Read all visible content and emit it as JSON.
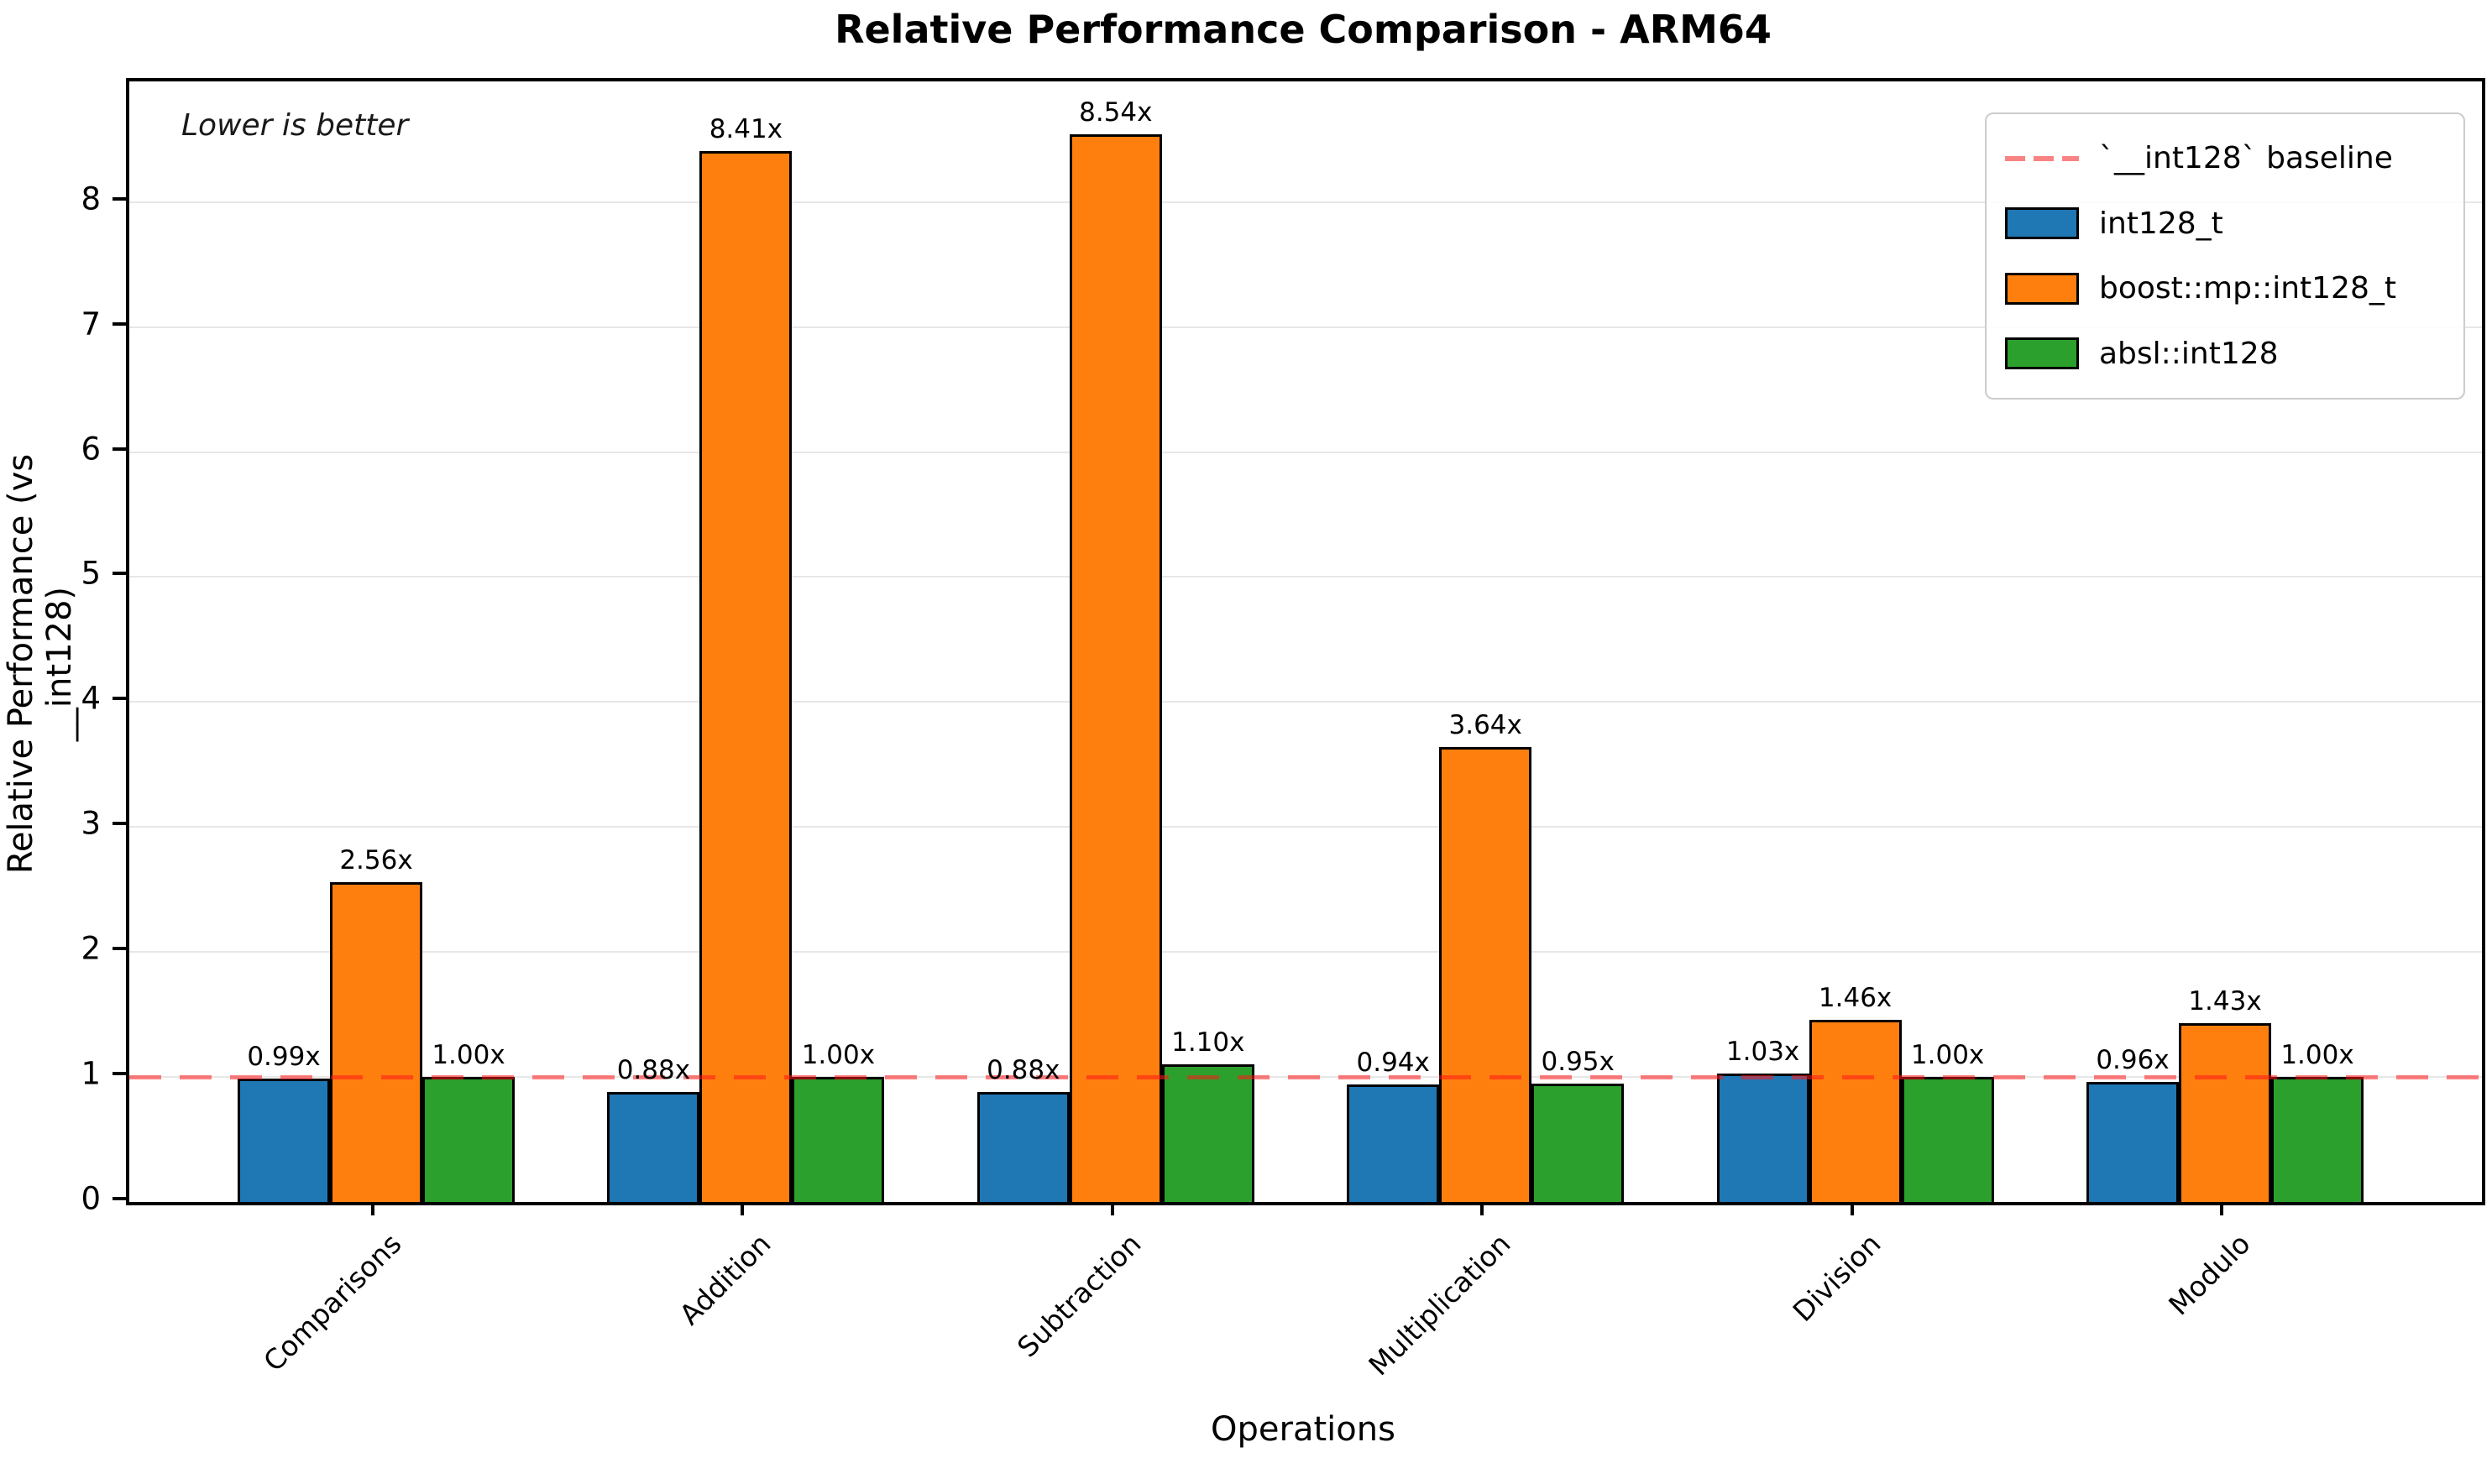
{
  "title": "Relative Performance Comparison - ARM64",
  "annotation": "Lower is better",
  "chart_data": {
    "type": "bar",
    "title": "Relative Performance Comparison - ARM64",
    "xlabel": "Operations",
    "ylabel": "Relative Performance (vs __int128)",
    "categories": [
      "Comparisons",
      "Addition",
      "Subtraction",
      "Multiplication",
      "Division",
      "Modulo"
    ],
    "series": [
      {
        "name": "int128_t",
        "color": "#1f77b4",
        "values": [
          0.99,
          0.88,
          0.88,
          0.94,
          1.03,
          0.96
        ],
        "labels": [
          "0.99x",
          "0.88x",
          "0.88x",
          "0.94x",
          "1.03x",
          "0.96x"
        ]
      },
      {
        "name": "boost::mp::int128_t",
        "color": "#ff7f0e",
        "values": [
          2.56,
          8.41,
          8.54,
          3.64,
          1.46,
          1.43
        ],
        "labels": [
          "2.56x",
          "8.41x",
          "8.54x",
          "3.64x",
          "1.46x",
          "1.43x"
        ]
      },
      {
        "name": "absl::int128",
        "color": "#2ca02c",
        "values": [
          1.0,
          1.0,
          1.1,
          0.95,
          1.0,
          1.0
        ],
        "labels": [
          "1.00x",
          "1.00x",
          "1.10x",
          "0.95x",
          "1.00x",
          "1.00x"
        ]
      }
    ],
    "baseline": {
      "value": 1.0,
      "label": "`__int128` baseline",
      "color": "#ff6d6d"
    },
    "yticks": [
      "0",
      "1",
      "2",
      "3",
      "4",
      "5",
      "6",
      "7",
      "8"
    ],
    "ylim": [
      0,
      8.965
    ],
    "grid": "y",
    "legend_position": "upper right",
    "note": "Lower is better"
  }
}
